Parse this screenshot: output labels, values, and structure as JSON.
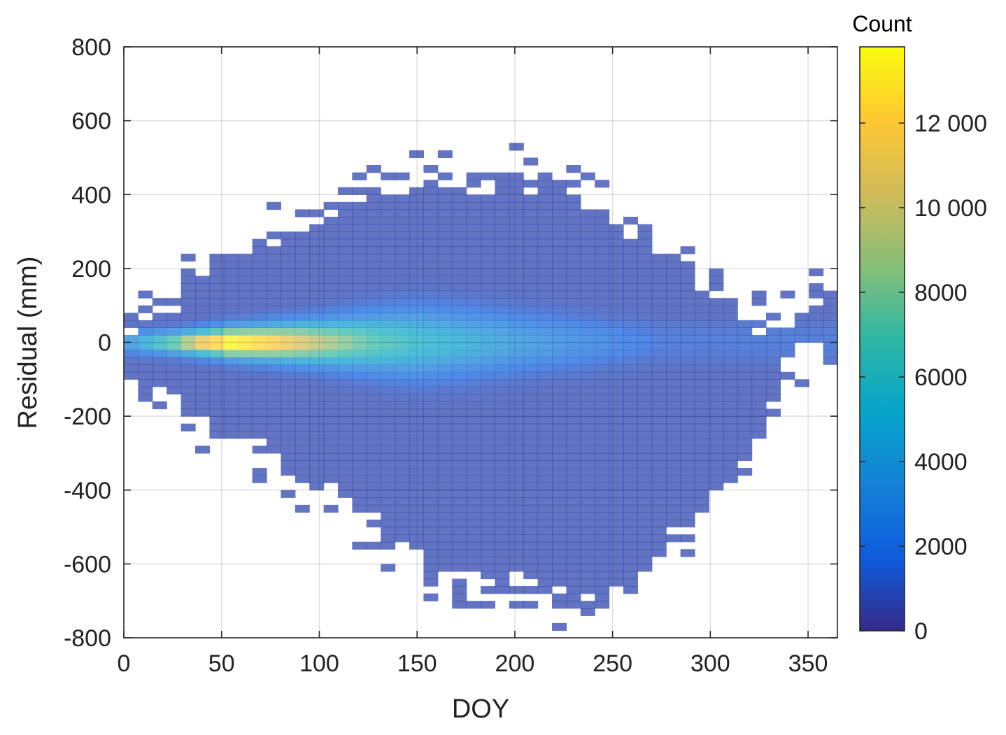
{
  "chart_data": {
    "type": "heatmap",
    "xlabel": "DOY",
    "ylabel": "Residual (mm)",
    "xlim": [
      0,
      365
    ],
    "ylim": [
      -800,
      800
    ],
    "xticks": [
      0,
      50,
      100,
      150,
      200,
      250,
      300,
      350
    ],
    "yticks": [
      -800,
      -600,
      -400,
      -200,
      0,
      200,
      400,
      600,
      800
    ],
    "xtick_labels": [
      "0",
      "50",
      "100",
      "150",
      "200",
      "250",
      "300",
      "350"
    ],
    "ytick_labels": [
      "-800",
      "-600",
      "-400",
      "-200",
      "0",
      "200",
      "400",
      "600",
      "800"
    ],
    "grid": true,
    "bin_width_doy": 7.3,
    "bin_height_mm": 20,
    "colorbar": {
      "title": "Count",
      "lim": [
        0,
        13800
      ],
      "ticks": [
        0,
        2000,
        4000,
        6000,
        8000,
        10000,
        12000
      ],
      "tick_labels": [
        "0",
        "2000",
        "4000",
        "6000",
        "8000",
        "10 000",
        "12 000"
      ],
      "colormap": "parula",
      "colors": [
        "#352a87",
        "#0f5cdd",
        "#1481d6",
        "#06a4ca",
        "#2eb7a4",
        "#87bf77",
        "#d1bb59",
        "#fec832",
        "#f9fb0e"
      ]
    },
    "data_density": {
      "description_values": "approximate counts along residual = 0 by DOY",
      "doy": [
        0,
        25,
        40,
        55,
        75,
        100,
        125,
        150,
        175,
        200,
        225,
        250,
        275
      ],
      "peak_count": [
        2500,
        7000,
        11500,
        13800,
        12000,
        9000,
        6500,
        5000,
        4000,
        3000,
        2200,
        1500,
        700
      ],
      "spread_mm": [
        18,
        20,
        22,
        26,
        30,
        38,
        48,
        58,
        55,
        50,
        45,
        40,
        35
      ]
    },
    "envelope": {
      "doy": [
        0,
        20,
        40,
        60,
        80,
        100,
        120,
        140,
        160,
        180,
        200,
        220,
        240,
        260,
        280,
        300,
        320,
        340,
        365
      ],
      "upper_mm": [
        40,
        90,
        180,
        220,
        300,
        330,
        370,
        430,
        440,
        420,
        450,
        420,
        370,
        320,
        210,
        140,
        40,
        60,
        140
      ],
      "lower_mm": [
        -90,
        -130,
        -210,
        -260,
        -330,
        -390,
        -470,
        -540,
        -620,
        -640,
        -640,
        -690,
        -720,
        -660,
        -520,
        -430,
        -320,
        -30,
        -30
      ]
    }
  }
}
